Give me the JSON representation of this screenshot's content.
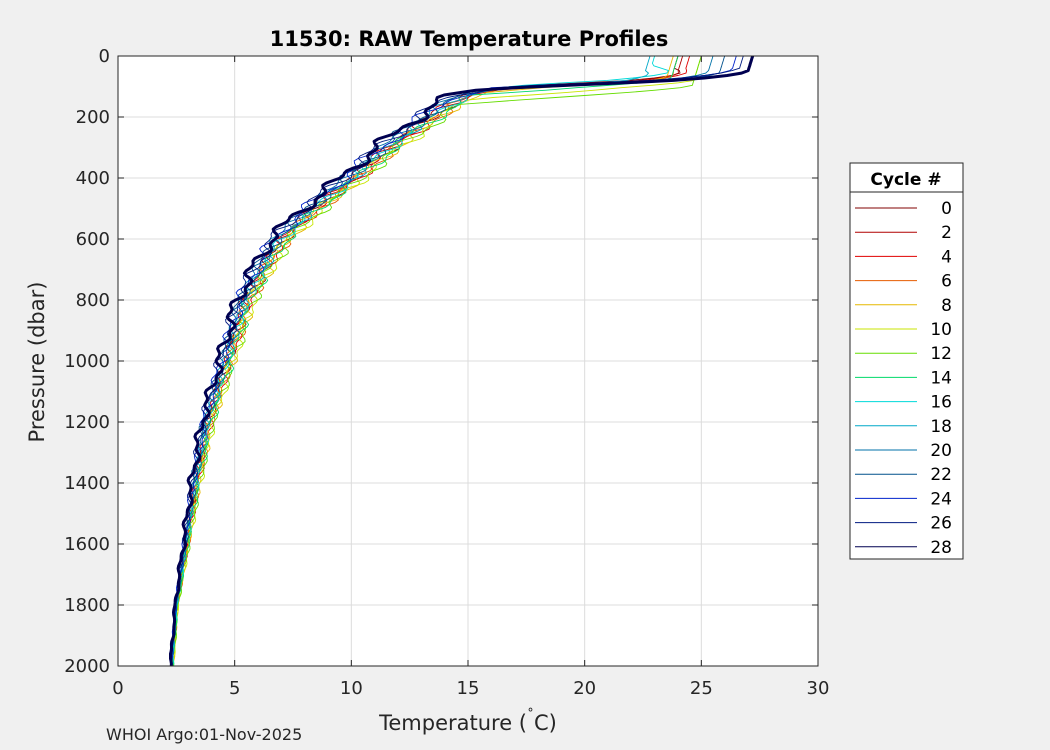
{
  "chart_data": {
    "type": "line",
    "title": "11530: RAW Temperature Profiles",
    "xlabel": "Temperature (°C)",
    "xlabel_main": "Temperature (",
    "xlabel_degree": "˚",
    "xlabel_unit": "C)",
    "ylabel": "Pressure (dbar)",
    "xlim": [
      0,
      30
    ],
    "ylim": [
      0,
      2000
    ],
    "y_reversed": true,
    "grid": true,
    "x_ticks": [
      0,
      5,
      10,
      15,
      20,
      25,
      30
    ],
    "y_ticks": [
      0,
      200,
      400,
      600,
      800,
      1000,
      1200,
      1400,
      1600,
      1800,
      2000
    ],
    "legend": {
      "title": "Cycle #",
      "placement": "outside-right",
      "entries": [
        {
          "label": "0",
          "color": "#800000"
        },
        {
          "label": "2",
          "color": "#b00000"
        },
        {
          "label": "4",
          "color": "#e00000"
        },
        {
          "label": "6",
          "color": "#e65c00"
        },
        {
          "label": "8",
          "color": "#e6b800"
        },
        {
          "label": "10",
          "color": "#c8e600"
        },
        {
          "label": "12",
          "color": "#66dd00"
        },
        {
          "label": "14",
          "color": "#00d96a"
        },
        {
          "label": "16",
          "color": "#00d9d9"
        },
        {
          "label": "18",
          "color": "#00a8c8"
        },
        {
          "label": "20",
          "color": "#0072a8"
        },
        {
          "label": "22",
          "color": "#00508c"
        },
        {
          "label": "24",
          "color": "#0022cc"
        },
        {
          "label": "26",
          "color": "#001a80"
        },
        {
          "label": "28",
          "color": "#000050"
        }
      ]
    },
    "base_profile": {
      "pressure": [
        0,
        50,
        80,
        100,
        130,
        160,
        200,
        250,
        300,
        350,
        400,
        450,
        500,
        550,
        600,
        700,
        800,
        900,
        1000,
        1100,
        1200,
        1400,
        1600,
        1800,
        2000
      ],
      "temperature": [
        25.5,
        25.0,
        21.0,
        16.5,
        14.8,
        14.0,
        13.3,
        12.4,
        11.5,
        10.7,
        10.0,
        9.1,
        8.3,
        7.6,
        6.9,
        6.1,
        5.4,
        5.0,
        4.6,
        4.2,
        3.8,
        3.3,
        2.9,
        2.5,
        2.3
      ]
    },
    "series": [
      {
        "name": "0",
        "temp_offset": 0.2,
        "surface_temp": 24.0,
        "mld": 40
      },
      {
        "name": "2",
        "temp_offset": 0.1,
        "surface_temp": 24.2,
        "mld": 50
      },
      {
        "name": "4",
        "temp_offset": 0.3,
        "surface_temp": 24.5,
        "mld": 45
      },
      {
        "name": "6",
        "temp_offset": 0.4,
        "surface_temp": 24.0,
        "mld": 55
      },
      {
        "name": "8",
        "temp_offset": 0.5,
        "surface_temp": 23.8,
        "mld": 60
      },
      {
        "name": "10",
        "temp_offset": 0.6,
        "surface_temp": 25.0,
        "mld": 80
      },
      {
        "name": "12",
        "temp_offset": 0.6,
        "surface_temp": 25.0,
        "mld": 100
      },
      {
        "name": "14",
        "temp_offset": 0.4,
        "surface_temp": 24.0,
        "mld": 70
      },
      {
        "name": "16",
        "temp_offset": 0.1,
        "surface_temp": 23.0,
        "mld": 30
      },
      {
        "name": "18",
        "temp_offset": 0.0,
        "surface_temp": 22.8,
        "mld": 50
      },
      {
        "name": "20",
        "temp_offset": -0.1,
        "surface_temp": 25.5,
        "mld": 50
      },
      {
        "name": "22",
        "temp_offset": -0.2,
        "surface_temp": 26.0,
        "mld": 55
      },
      {
        "name": "24",
        "temp_offset": -0.3,
        "surface_temp": 26.5,
        "mld": 45
      },
      {
        "name": "26",
        "temp_offset": -0.4,
        "surface_temp": 26.8,
        "mld": 40
      },
      {
        "name": "28",
        "temp_offset": -0.5,
        "surface_temp": 27.2,
        "mld": 50,
        "bold": true
      }
    ]
  },
  "footer": "WHOI Argo:01-Nov-2025"
}
